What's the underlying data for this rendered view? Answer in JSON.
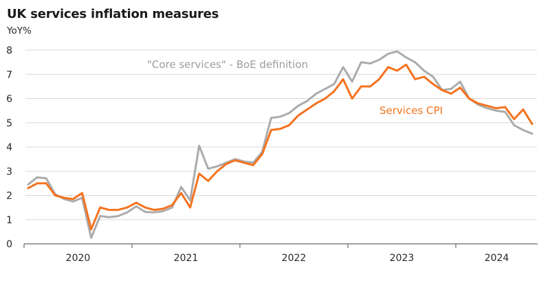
{
  "header": {
    "title": "UK services inflation measures",
    "unit_label": "YoY%"
  },
  "chart_data": {
    "type": "line",
    "title": "UK services inflation measures",
    "ylabel": "YoY%",
    "x_start": "2020-01",
    "x_end": "2024-09",
    "frequency": "monthly",
    "x_tick_labels": [
      "2020",
      "2021",
      "2022",
      "2023",
      "2024"
    ],
    "ylim": [
      0,
      8
    ],
    "yticks": [
      0,
      1,
      2,
      3,
      4,
      5,
      6,
      7,
      8
    ],
    "grid": "horizontal",
    "legend_position": "inline-annotations",
    "series": [
      {
        "name": "\"Core services\" - BoE definition",
        "color": "#ababab",
        "values": [
          2.45,
          2.75,
          2.7,
          2.05,
          1.85,
          1.75,
          1.9,
          0.25,
          1.15,
          1.1,
          1.15,
          1.3,
          1.55,
          1.32,
          1.3,
          1.35,
          1.5,
          2.35,
          1.8,
          4.05,
          3.1,
          3.2,
          3.35,
          3.5,
          3.4,
          3.35,
          3.8,
          5.2,
          5.25,
          5.4,
          5.7,
          5.9,
          6.2,
          6.4,
          6.6,
          7.3,
          6.7,
          7.5,
          7.45,
          7.6,
          7.85,
          7.95,
          7.7,
          7.5,
          7.15,
          6.9,
          6.35,
          6.4,
          6.7,
          6.0,
          5.75,
          5.6,
          5.5,
          5.45,
          4.9,
          4.7,
          4.55
        ]
      },
      {
        "name": "Services CPI",
        "color": "#f5721d",
        "values": [
          2.3,
          2.5,
          2.5,
          2.0,
          1.9,
          1.85,
          2.1,
          0.6,
          1.5,
          1.4,
          1.4,
          1.5,
          1.7,
          1.5,
          1.4,
          1.45,
          1.6,
          2.1,
          1.5,
          2.9,
          2.6,
          3.0,
          3.3,
          3.45,
          3.35,
          3.25,
          3.7,
          4.7,
          4.75,
          4.9,
          5.3,
          5.55,
          5.8,
          6.0,
          6.3,
          6.8,
          6.0,
          6.5,
          6.5,
          6.8,
          7.3,
          7.15,
          7.4,
          6.8,
          6.9,
          6.6,
          6.35,
          6.2,
          6.45,
          6.0,
          5.8,
          5.7,
          5.6,
          5.65,
          5.15,
          5.55,
          4.95
        ]
      }
    ]
  },
  "colors": {
    "grid": "#d9d9d9",
    "axis": "#808080",
    "tick_text": "#262626",
    "title_text": "#1a1a1a"
  }
}
